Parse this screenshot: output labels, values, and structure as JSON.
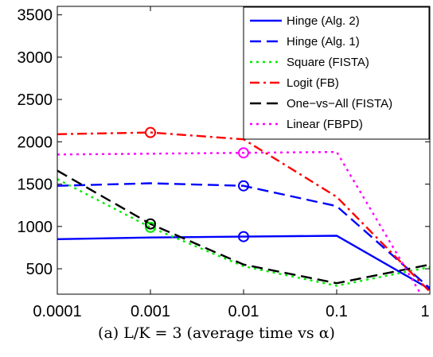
{
  "chart_data": {
    "type": "line",
    "caption": "(a) L/K = 3 (average time vs α)",
    "x": [
      0.0001,
      0.001,
      0.01,
      0.1,
      1
    ],
    "x_tick_labels": [
      "0.0001",
      "0.001",
      "0.01",
      "0.1",
      "1"
    ],
    "x_scale": "log",
    "xlim": [
      0.0001,
      1
    ],
    "ylim": [
      200,
      3600
    ],
    "y_ticks": [
      500,
      1000,
      1500,
      2000,
      2500,
      3000,
      3500
    ],
    "grid": false,
    "legend_position": "top-right",
    "series": [
      {
        "name": "Hinge (Alg. 2)",
        "color": "#0000ff",
        "dash": "solid",
        "x": [
          0.0001,
          0.001,
          0.01,
          0.1,
          1
        ],
        "values": [
          850,
          870,
          880,
          890,
          260
        ],
        "marker_x": 0.01
      },
      {
        "name": "Hinge (Alg. 1)",
        "color": "#0000ff",
        "dash": "dash",
        "x": [
          0.0001,
          0.001,
          0.01,
          0.1,
          1
        ],
        "values": [
          1480,
          1510,
          1480,
          1240,
          270
        ],
        "marker_x": 0.01
      },
      {
        "name": "Square (FISTA)",
        "color": "#00ee00",
        "dash": "dot",
        "x": [
          0.0001,
          0.001,
          0.01,
          0.1,
          1
        ],
        "values": [
          1560,
          990,
          530,
          300,
          520
        ],
        "marker_x": 0.001
      },
      {
        "name": "Logit (FB)",
        "color": "#ff0000",
        "dash": "dashdot",
        "x": [
          0.0001,
          0.001,
          0.01,
          0.1,
          1
        ],
        "values": [
          2090,
          2110,
          2030,
          1350,
          230
        ],
        "marker_x": 0.001
      },
      {
        "name": "One−vs−All (FISTA)",
        "color": "#000000",
        "dash": "dash",
        "x": [
          0.0001,
          0.001,
          0.01,
          0.1,
          1
        ],
        "values": [
          1660,
          1030,
          550,
          330,
          550
        ],
        "marker_x": 0.001
      },
      {
        "name": "Linear (FBPD)",
        "color": "#ff00ff",
        "dash": "dot",
        "x": [
          0.0001,
          0.001,
          0.01,
          0.1,
          0.8
        ],
        "values": [
          1850,
          1860,
          1870,
          1880,
          200
        ],
        "marker_x": 0.01
      }
    ]
  }
}
